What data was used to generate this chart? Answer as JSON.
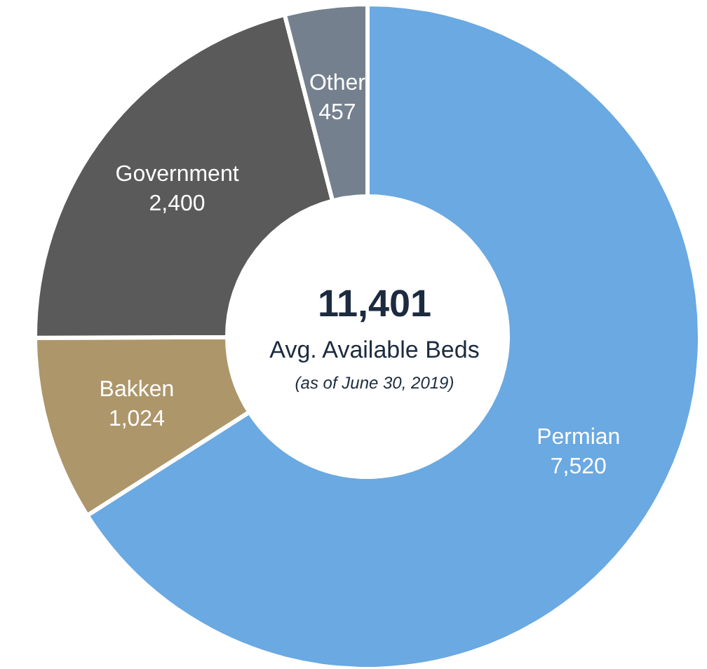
{
  "chart_data": {
    "type": "donut",
    "title": "11,401",
    "subtitle": "Avg. Available Beds",
    "annotations": [
      "(as of June 30, 2019)"
    ],
    "categories": [
      "Permian",
      "Bakken",
      "Government",
      "Other"
    ],
    "values": [
      7520,
      1024,
      2400,
      457
    ],
    "colors": [
      "#6aa9e2",
      "#ad966a",
      "#5a5a5a",
      "#75808e"
    ],
    "value_labels": [
      "7,520",
      "1,024",
      "2,400",
      "457"
    ],
    "legend": false
  }
}
